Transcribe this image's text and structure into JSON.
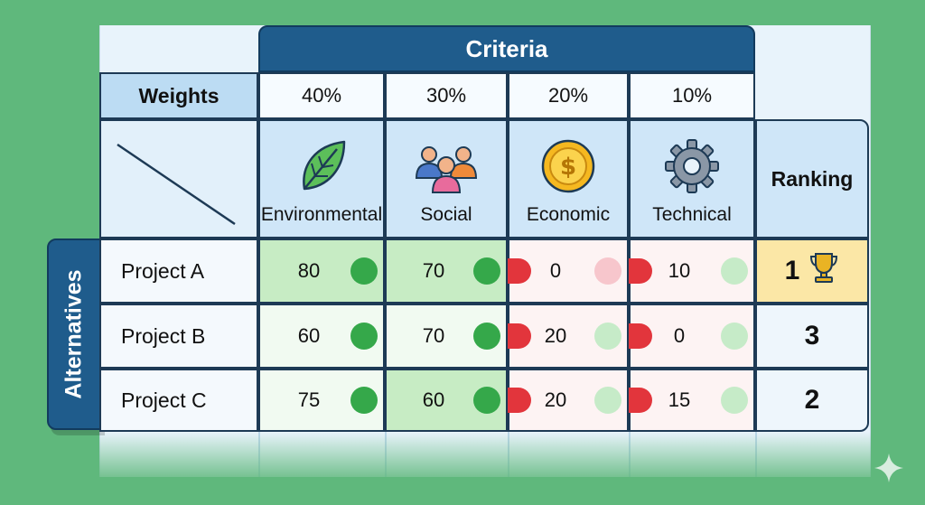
{
  "header": {
    "criteria_label": "Criteria",
    "weights_label": "Weights"
  },
  "criteria": [
    {
      "name": "Environmental",
      "weight": "40%",
      "icon": "leaf-icon"
    },
    {
      "name": "Social",
      "weight": "30%",
      "icon": "people-icon"
    },
    {
      "name": "Economic",
      "weight": "20%",
      "icon": "coin-icon"
    },
    {
      "name": "Technical",
      "weight": "10%",
      "icon": "gear-icon"
    }
  ],
  "ranking_label": "Ranking",
  "alternatives_label": "Alternatives",
  "alternatives": [
    {
      "name": "Project A",
      "scores": [
        "80",
        "70",
        "0",
        "10"
      ],
      "rank": "1"
    },
    {
      "name": "Project B",
      "scores": [
        "60",
        "70",
        "20",
        "0"
      ],
      "rank": "3"
    },
    {
      "name": "Project C",
      "scores": [
        "75",
        "60",
        "20",
        "15"
      ],
      "rank": "2"
    }
  ],
  "colors": {
    "banner": "#1f5c8c",
    "good": "#35a84a",
    "bad": "#e2353c",
    "top_rank": "#fbe7a6",
    "background": "#5fb87c"
  }
}
